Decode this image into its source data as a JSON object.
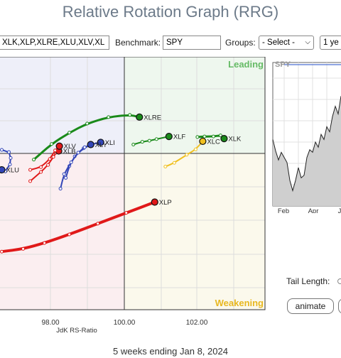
{
  "page": {
    "title": "Relative Rotation Graph (RRG)",
    "footer": "5 weeks ending Jan 8, 2024"
  },
  "toolbar": {
    "symbols_value": "XLK,XLP,XLRE,XLU,XLV,XL",
    "benchmark_label": "Benchmark:",
    "benchmark_value": "SPY",
    "groups_label": "Groups:",
    "groups_value": "- Select -",
    "period_value": "1 ye"
  },
  "controls": {
    "tail_length_label": "Tail Length:",
    "animate_label": "animate"
  },
  "colors": {
    "leading_bg": "#eef7ee",
    "weakening_bg": "#fbf9ec",
    "lagging_bg": "#fbeef0",
    "improving_bg": "#eeeff9",
    "leading_text": "#66bb66",
    "weakening_text": "#e8b820",
    "green": "#1a8a1a",
    "blue": "#3346b8",
    "red": "#e01919",
    "yellow": "#f0c020"
  },
  "chart_data": [
    {
      "type": "scatter",
      "title": "",
      "xlabel": "JdK RS-Ratio",
      "ylabel": "",
      "xlim": [
        96.55,
        104.0
      ],
      "ylim": [
        96.8,
        101.5
      ],
      "center": [
        100.0,
        100.0
      ],
      "x_ticks": [
        "98.00",
        "100.00",
        "102.00"
      ],
      "quadrants": {
        "top_right": "Leading",
        "bottom_right": "Weakening"
      },
      "series": [
        {
          "name": "XLRE",
          "color": "#1a8a1a",
          "points": [
            [
              97.5,
              99.59
            ],
            [
              98.0,
              99.88
            ],
            [
              98.5,
              100.09
            ],
            [
              99.0,
              100.26
            ],
            [
              99.6,
              100.38
            ],
            [
              100.2,
              100.42
            ],
            [
              100.47,
              100.38
            ]
          ]
        },
        {
          "name": "XLF",
          "color": "#1a8a1a",
          "points": [
            [
              100.3,
              99.87
            ],
            [
              100.55,
              99.92
            ],
            [
              100.75,
              99.94
            ],
            [
              100.95,
              99.97
            ],
            [
              101.3,
              100.02
            ]
          ]
        },
        {
          "name": "XLK",
          "color": "#1a8a1a",
          "points": [
            [
              102.1,
              100.01
            ],
            [
              102.3,
              100.02
            ],
            [
              102.55,
              100.02
            ],
            [
              102.75,
              100.04
            ],
            [
              102.85,
              99.98
            ]
          ]
        },
        {
          "name": "XLU",
          "color": "#3346b8",
          "points": [
            [
              96.6,
              99.77
            ],
            [
              96.8,
              99.73
            ],
            [
              96.85,
              99.62
            ],
            [
              96.83,
              99.5
            ],
            [
              96.7,
              99.37
            ],
            [
              96.6,
              99.4
            ]
          ]
        },
        {
          "name": "XLI",
          "color": "#3346b8",
          "points": [
            [
              98.4,
              99.25
            ],
            [
              98.5,
              99.47
            ],
            [
              98.65,
              99.65
            ],
            [
              98.9,
              99.8
            ],
            [
              99.15,
              99.88
            ],
            [
              99.38,
              99.91
            ]
          ]
        },
        {
          "name": "XLY",
          "color": "#3346b8",
          "points": [
            [
              98.25,
              99.05
            ],
            [
              98.35,
              99.32
            ],
            [
              98.55,
              99.54
            ],
            [
              98.75,
              99.72
            ],
            [
              98.93,
              99.82
            ],
            [
              99.1,
              99.87
            ]
          ]
        },
        {
          "name": "XLB",
          "color": "#e01919",
          "points": [
            [
              97.4,
              99.19
            ],
            [
              97.7,
              99.36
            ],
            [
              97.9,
              99.49
            ],
            [
              98.05,
              99.64
            ],
            [
              98.13,
              99.72
            ],
            [
              98.2,
              99.75
            ]
          ]
        },
        {
          "name": "XLV",
          "color": "#e01919",
          "points": [
            [
              97.4,
              99.4
            ],
            [
              97.7,
              99.45
            ],
            [
              97.95,
              99.6
            ],
            [
              98.1,
              99.76
            ],
            [
              98.22,
              99.84
            ]
          ]
        },
        {
          "name": "XLC",
          "color": "#f0c020",
          "points": [
            [
              101.2,
              99.46
            ],
            [
              101.45,
              99.53
            ],
            [
              101.8,
              99.68
            ],
            [
              102.05,
              99.78
            ],
            [
              102.25,
              99.93
            ]
          ]
        },
        {
          "name": "XLP",
          "color": "#e01919",
          "points": [
            [
              96.6,
              97.88
            ],
            [
              97.2,
              97.93
            ],
            [
              97.8,
              98.04
            ],
            [
              98.5,
              98.2
            ],
            [
              99.3,
              98.4
            ],
            [
              100.1,
              98.6
            ],
            [
              100.9,
              98.8
            ]
          ]
        }
      ]
    },
    {
      "type": "line",
      "title": "SPY",
      "x_ticks": [
        "Feb",
        "Apr",
        "J"
      ],
      "values": [
        0.52,
        0.43,
        0.36,
        0.42,
        0.38,
        0.34,
        0.2,
        0.12,
        0.2,
        0.3,
        0.22,
        0.24,
        0.38,
        0.44,
        0.42,
        0.5,
        0.46,
        0.56,
        0.52,
        0.62,
        0.58,
        0.7,
        0.78,
        0.72,
        0.86
      ]
    }
  ]
}
